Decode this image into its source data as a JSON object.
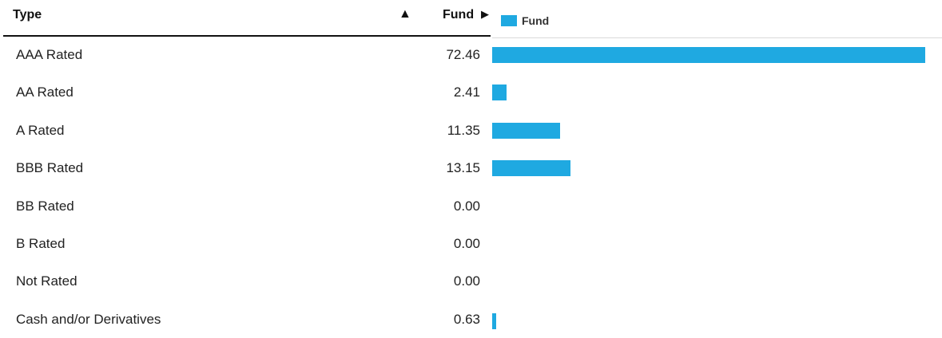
{
  "header": {
    "type_label": "Type",
    "sort_icon": "sort-up-icon",
    "fund_label": "Fund",
    "expand_icon": "caret-right-icon"
  },
  "legend": {
    "label": "Fund"
  },
  "colors": {
    "bar": "#1fa9e1"
  },
  "chart_data": {
    "type": "bar",
    "orientation": "horizontal",
    "categories": [
      "AAA Rated",
      "AA Rated",
      "A Rated",
      "BBB Rated",
      "BB Rated",
      "B Rated",
      "Not Rated",
      "Cash and/or Derivatives"
    ],
    "series": [
      {
        "name": "Fund",
        "values": [
          72.46,
          2.41,
          11.35,
          13.15,
          0.0,
          0.0,
          0.0,
          0.63
        ]
      }
    ],
    "value_labels": [
      "72.46",
      "2.41",
      "11.35",
      "13.15",
      "0.00",
      "0.00",
      "0.00",
      "0.63"
    ],
    "xlim": [
      0,
      72.46
    ],
    "legend_position": "top-left",
    "grid": false
  }
}
